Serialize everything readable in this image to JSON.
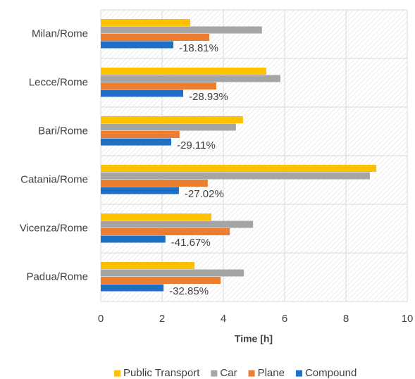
{
  "chart_data": {
    "type": "bar",
    "orientation": "horizontal",
    "categories": [
      "Milan/Rome",
      "Lecce/Rome",
      "Bari/Rome",
      "Catania/Rome",
      "Vicenza/Rome",
      "Padua/Rome"
    ],
    "series": [
      {
        "name": "Public Transport",
        "color": "#ffc000",
        "values": [
          2.92,
          5.4,
          4.64,
          8.99,
          3.61,
          3.06
        ]
      },
      {
        "name": "Car",
        "color": "#a5a5a5",
        "values": [
          5.26,
          5.86,
          4.41,
          8.78,
          4.97,
          4.67
        ]
      },
      {
        "name": "Plane",
        "color": "#ed7d31",
        "values": [
          3.54,
          3.77,
          2.57,
          3.49,
          4.21,
          3.91
        ]
      },
      {
        "name": "Compound",
        "color": "#1f6fc5",
        "values": [
          2.37,
          2.69,
          2.3,
          2.55,
          2.11,
          2.05
        ]
      }
    ],
    "annotations": [
      "-18.81%",
      "-28.93%",
      "-29.11%",
      "-27.02%",
      "-41.67%",
      "-32.85%"
    ],
    "x_label": "Time [h]",
    "xlim": [
      0,
      10
    ],
    "xticks": [
      0,
      2,
      4,
      6,
      8,
      10
    ],
    "grid": true,
    "legend": "bottom"
  }
}
